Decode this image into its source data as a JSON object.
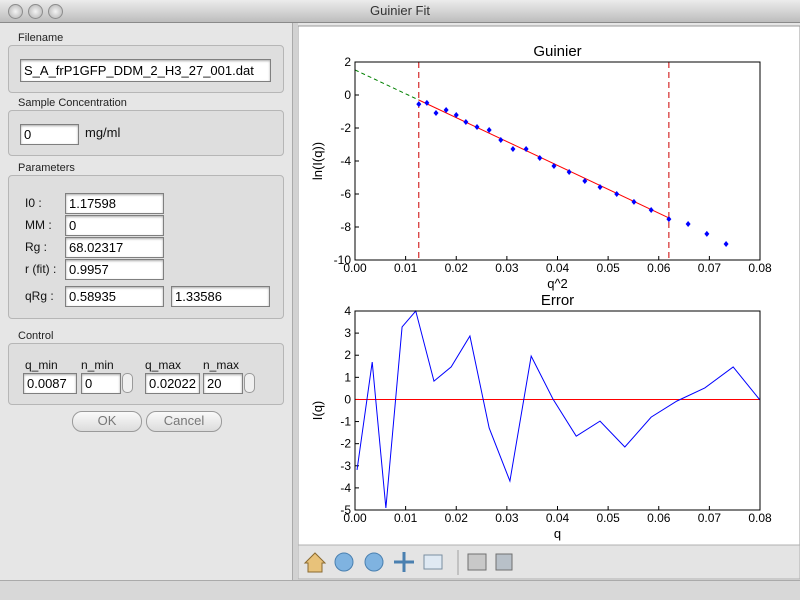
{
  "window": {
    "title": "Guinier Fit"
  },
  "form": {
    "filename": {
      "label": "Filename",
      "value": "S_A_frP1GFP_DDM_2_H3_27_001.dat"
    },
    "concentration": {
      "label": "Sample Concentration",
      "value": "0",
      "unit": "mg/ml"
    },
    "parameters": {
      "label": "Parameters",
      "rows": [
        {
          "label": "I0 :",
          "values": [
            "1.17598"
          ]
        },
        {
          "label": "MM :",
          "values": [
            "0"
          ]
        },
        {
          "label": "Rg :",
          "values": [
            "68.02317"
          ]
        },
        {
          "label": "r (fit) :",
          "values": [
            "0.9957"
          ]
        },
        {
          "label": "qRg :",
          "values": [
            "0.58935",
            "1.33586"
          ]
        }
      ]
    },
    "control": {
      "label": "Control",
      "fields": [
        {
          "label": "q_min",
          "value": "0.0087"
        },
        {
          "label": "n_min",
          "value": "0"
        },
        {
          "label": "q_max",
          "value": "0.02022"
        },
        {
          "label": "n_max",
          "value": "20"
        }
      ]
    },
    "buttons": [
      "OK",
      "Cancel"
    ]
  },
  "chart_data": [
    {
      "type": "scatter",
      "title": "Guinier",
      "x_label": "q^2",
      "y_label": "ln(I(q))",
      "x": [
        0.0126,
        0.0142,
        0.016,
        0.018,
        0.02,
        0.0219,
        0.0241,
        0.0265,
        0.0288,
        0.0312,
        0.0338,
        0.0365,
        0.0393,
        0.0423,
        0.0454,
        0.0484,
        0.0517,
        0.0551,
        0.0585,
        0.062,
        0.0658,
        0.0695,
        0.0733
      ],
      "values": [
        -0.55,
        -0.48,
        -1.09,
        -0.91,
        -1.21,
        -1.64,
        -1.94,
        -2.12,
        -2.73,
        -3.27,
        -3.27,
        -3.82,
        -4.3,
        -4.67,
        -5.21,
        -5.58,
        -6.0,
        -6.48,
        -6.97,
        -7.52,
        -7.82,
        -8.42,
        -9.03
      ],
      "color": "#0000ff",
      "fit": {
        "intercept": 1.52,
        "slope": -144.7,
        "color": "#ff0000",
        "extrapolation_color": "#008000"
      },
      "vlines": {
        "values": [
          0.0126,
          0.062
        ],
        "color": "#cc0000"
      },
      "xlim": [
        0,
        0.08
      ],
      "ylim": [
        -10,
        2
      ],
      "xticks": [
        {
          "value": 0,
          "label": "0.00"
        },
        {
          "value": 0.01,
          "label": "0.01"
        },
        {
          "value": 0.02,
          "label": "0.02"
        },
        {
          "value": 0.03,
          "label": "0.03"
        },
        {
          "value": 0.04,
          "label": "0.04"
        },
        {
          "value": 0.05,
          "label": "0.05"
        },
        {
          "value": 0.06,
          "label": "0.06"
        },
        {
          "value": 0.07,
          "label": "0.07"
        },
        {
          "value": 0.08,
          "label": "0.08"
        }
      ],
      "yticks": [
        -10,
        -8,
        -6,
        -4,
        -2,
        0,
        2
      ]
    },
    {
      "type": "line",
      "title": "Error",
      "x_label": "q",
      "y_label": "I(q)",
      "x": [
        0.0004,
        0.0034,
        0.0061,
        0.0093,
        0.012,
        0.0156,
        0.019,
        0.0227,
        0.0265,
        0.0306,
        0.0348,
        0.0391,
        0.0437,
        0.0484,
        0.0533,
        0.0585,
        0.0636,
        0.0691,
        0.0747,
        0.08
      ],
      "values": [
        -3.19,
        1.69,
        -4.91,
        3.28,
        4.0,
        0.83,
        1.47,
        2.87,
        -1.29,
        -3.69,
        1.96,
        0.02,
        -1.66,
        -0.98,
        -2.15,
        -0.8,
        -0.07,
        0.52,
        1.47,
        -0.03
      ],
      "color": "#0000ff",
      "zero_line": 0,
      "zero_line_color": "#ff0000",
      "xlim": [
        0,
        0.08
      ],
      "ylim": [
        -5,
        4
      ],
      "xticks": [
        {
          "value": 0,
          "label": "0.00"
        },
        {
          "value": 0.01,
          "label": "0.01"
        },
        {
          "value": 0.02,
          "label": "0.02"
        },
        {
          "value": 0.03,
          "label": "0.03"
        },
        {
          "value": 0.04,
          "label": "0.04"
        },
        {
          "value": 0.05,
          "label": "0.05"
        },
        {
          "value": 0.06,
          "label": "0.06"
        },
        {
          "value": 0.07,
          "label": "0.07"
        },
        {
          "value": 0.08,
          "label": "0.08"
        }
      ],
      "yticks": [
        -5,
        -4,
        -3,
        -2,
        -1,
        0,
        1,
        2,
        3,
        4
      ]
    }
  ]
}
